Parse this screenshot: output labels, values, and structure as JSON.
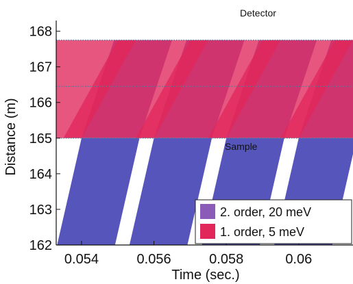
{
  "chart_data": {
    "type": "area",
    "xlabel": "Time (sec.)",
    "ylabel": "Distance (m)",
    "xlim": [
      0.0533,
      0.0615
    ],
    "ylim": [
      162,
      168.3
    ],
    "x_ticks": [
      0.054,
      0.056,
      0.058,
      0.06
    ],
    "x_tick_labels": [
      "0.054",
      "0.056",
      "0.058",
      "0.06"
    ],
    "y_ticks": [
      162,
      163,
      164,
      165,
      166,
      167,
      168
    ],
    "y_tick_labels": [
      "162",
      "163",
      "164",
      "165",
      "166",
      "167",
      "168"
    ],
    "grid": false,
    "legend_position": "bottom-right",
    "reference_lines": [
      {
        "y": 165.0,
        "label": "Sample"
      },
      {
        "y": 166.45,
        "label": ""
      },
      {
        "y": 167.75,
        "label": "Detector"
      }
    ],
    "series": [
      {
        "name": "2. order, 20 meV",
        "color": "#5555bb",
        "upper_color": "#8a5cb8",
        "pulses": [
          {
            "bottom": [
              0.0531,
              0.0547
            ],
            "top_at_165": [
              0.054,
              0.0556
            ],
            "top_at_detector": [
              0.0549,
              0.0565
            ]
          },
          {
            "bottom": [
              0.0551,
              0.0567
            ],
            "top_at_165": [
              0.056,
              0.0576
            ],
            "top_at_detector": [
              0.0569,
              0.0585
            ]
          },
          {
            "bottom": [
              0.0571,
              0.0587
            ],
            "top_at_165": [
              0.058,
              0.0596
            ],
            "top_at_detector": [
              0.0589,
              0.0605
            ]
          },
          {
            "bottom": [
              0.0591,
              0.0607
            ],
            "top_at_165": [
              0.06,
              0.0616
            ],
            "top_at_detector": [
              0.0609,
              0.0625
            ]
          }
        ]
      },
      {
        "name": "1. order, 5 meV",
        "color": "#e0265a",
        "light_color": "#ee5a80",
        "pulses": [
          {
            "at_165": [
              0.0515,
              0.054
            ],
            "at_detector": [
              0.053,
              0.0555
            ]
          },
          {
            "at_165": [
              0.0535,
              0.056
            ],
            "at_detector": [
              0.055,
              0.0575
            ]
          },
          {
            "at_165": [
              0.0555,
              0.058
            ],
            "at_detector": [
              0.057,
              0.0595
            ]
          },
          {
            "at_165": [
              0.0575,
              0.06
            ],
            "at_detector": [
              0.059,
              0.0615
            ]
          },
          {
            "at_165": [
              0.0595,
              0.062
            ],
            "at_detector": [
              0.061,
              0.0635
            ]
          }
        ]
      }
    ]
  }
}
